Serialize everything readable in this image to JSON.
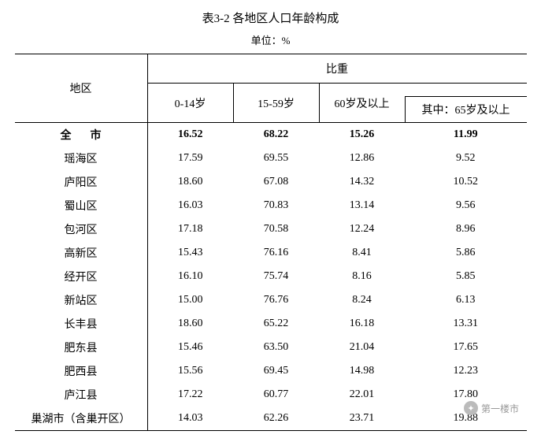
{
  "title": "表3-2  各地区人口年龄构成",
  "subtitle": "单位：%",
  "header": {
    "region": "地区",
    "proportion": "比重",
    "c1": "0-14岁",
    "c2": "15-59岁",
    "c3": "60岁及以上",
    "c4": "其中：65岁及以上"
  },
  "total": {
    "region": "全市",
    "v": [
      "16.52",
      "68.22",
      "15.26",
      "11.99"
    ]
  },
  "rows": [
    {
      "region": "瑶海区",
      "v": [
        "17.59",
        "69.55",
        "12.86",
        "9.52"
      ]
    },
    {
      "region": "庐阳区",
      "v": [
        "18.60",
        "67.08",
        "14.32",
        "10.52"
      ]
    },
    {
      "region": "蜀山区",
      "v": [
        "16.03",
        "70.83",
        "13.14",
        "9.56"
      ]
    },
    {
      "region": "包河区",
      "v": [
        "17.18",
        "70.58",
        "12.24",
        "8.96"
      ]
    },
    {
      "region": "高新区",
      "v": [
        "15.43",
        "76.16",
        "8.41",
        "5.86"
      ]
    },
    {
      "region": "经开区",
      "v": [
        "16.10",
        "75.74",
        "8.16",
        "5.85"
      ]
    },
    {
      "region": "新站区",
      "v": [
        "15.00",
        "76.76",
        "8.24",
        "6.13"
      ]
    },
    {
      "region": "长丰县",
      "v": [
        "18.60",
        "65.22",
        "16.18",
        "13.31"
      ]
    },
    {
      "region": "肥东县",
      "v": [
        "15.46",
        "63.50",
        "21.04",
        "17.65"
      ]
    },
    {
      "region": "肥西县",
      "v": [
        "15.56",
        "69.45",
        "14.98",
        "12.23"
      ]
    },
    {
      "region": "庐江县",
      "v": [
        "17.22",
        "60.77",
        "22.01",
        "17.80"
      ]
    },
    {
      "region": "巢湖市（含巢开区）",
      "v": [
        "14.03",
        "62.26",
        "23.71",
        "19.88"
      ]
    }
  ],
  "watermark": {
    "label": "第一楼市"
  }
}
